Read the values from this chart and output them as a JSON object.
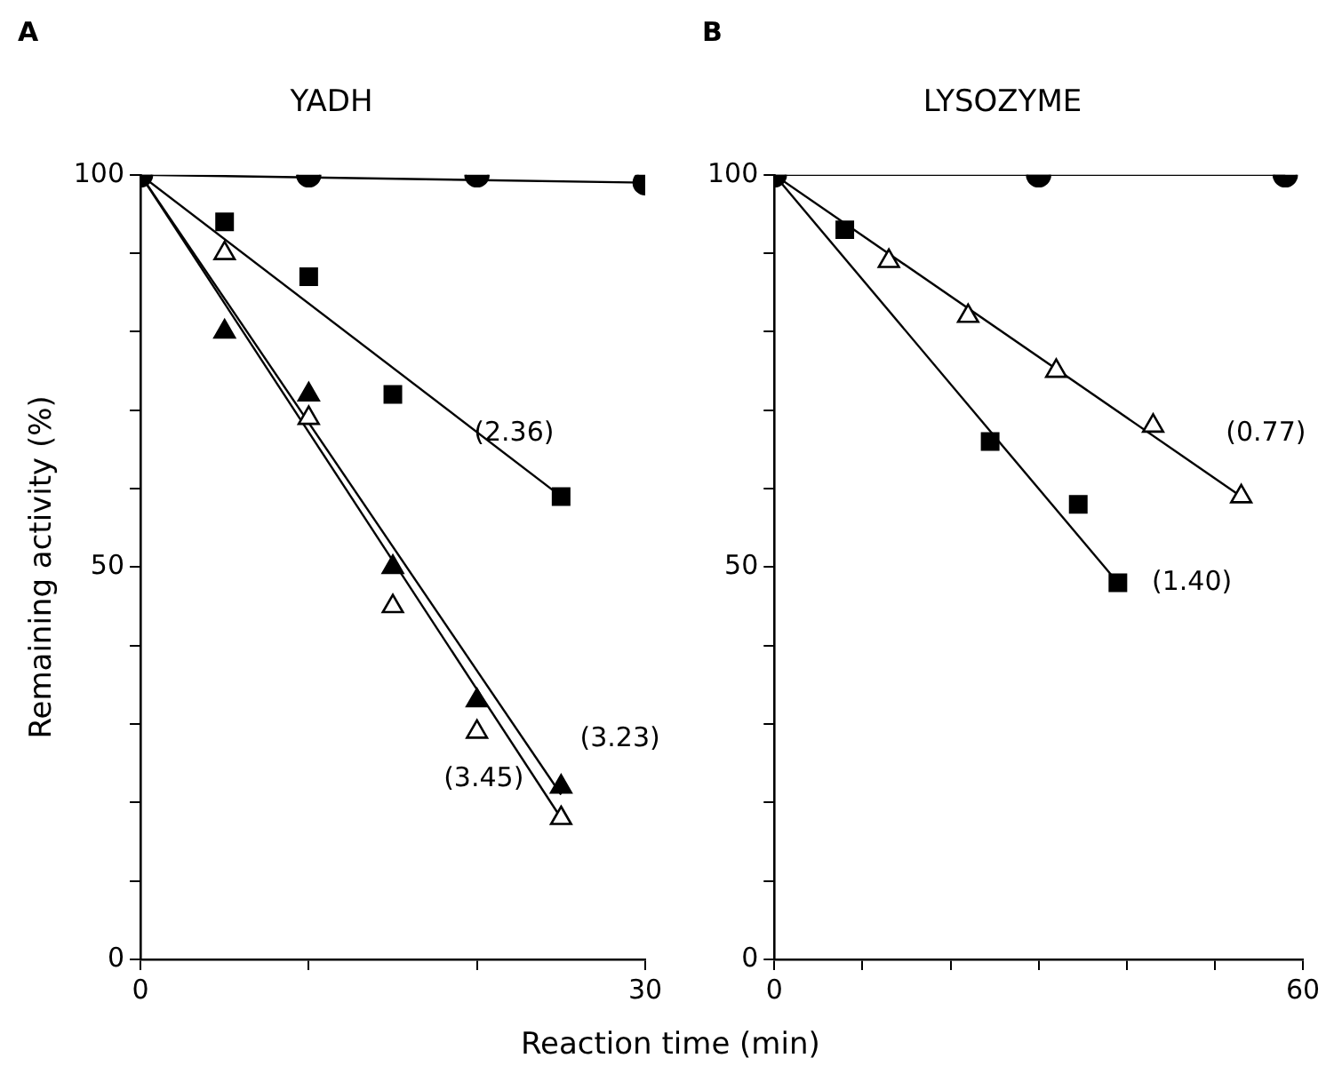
{
  "chart_data": [
    {
      "type": "scatter",
      "title": "A",
      "subtitle": "YADH",
      "ylabel": "Remaining activity (%)",
      "xlabel": "Reaction time (min)",
      "grid": false,
      "legend": false,
      "xlim": [
        0,
        30
      ],
      "xticks": [
        0,
        {
          "value": 10,
          "label": null
        },
        {
          "value": 20,
          "label": null
        },
        30
      ],
      "ylim": [
        0,
        100
      ],
      "yticks": [
        0,
        {
          "value": 10,
          "label": null
        },
        {
          "value": 20,
          "label": null
        },
        {
          "value": 30,
          "label": null
        },
        {
          "value": 40,
          "label": null
        },
        50,
        {
          "value": 60,
          "label": null
        },
        {
          "value": 70,
          "label": null
        },
        {
          "value": 80,
          "label": null
        },
        {
          "value": 90,
          "label": null
        },
        100
      ],
      "series": [
        {
          "color": "#000000",
          "marker": "circle",
          "x": [
            0,
            10,
            20,
            30
          ],
          "values": [
            100,
            100,
            100,
            99
          ]
        },
        {
          "color": "#000000",
          "marker": "square",
          "x": [
            5,
            10,
            15,
            25
          ],
          "values": [
            94,
            87,
            72,
            59
          ]
        },
        {
          "color": "#000000",
          "marker": "triangle",
          "x": [
            5,
            10,
            15,
            20,
            25
          ],
          "values": [
            80,
            72,
            50,
            33,
            22
          ]
        },
        {
          "color": "#ffffff",
          "marker": "triangle",
          "x": [
            5,
            10,
            15,
            20,
            25
          ],
          "values": [
            90,
            69,
            45,
            29,
            18
          ]
        },
        {
          "type": "line",
          "color": "#000000",
          "marker": "none",
          "x": [
            0,
            30
          ],
          "values": [
            100,
            99
          ]
        },
        {
          "type": "line",
          "color": "#000000",
          "marker": "none",
          "x": [
            0,
            25
          ],
          "values": [
            100,
            59
          ]
        },
        {
          "type": "line",
          "color": "#000000",
          "marker": "none",
          "x": [
            0,
            25
          ],
          "values": [
            100,
            21
          ]
        },
        {
          "type": "line",
          "color": "#000000",
          "marker": "none",
          "x": [
            0,
            25
          ],
          "values": [
            100,
            18
          ]
        }
      ],
      "annotations": [
        "(2.36)",
        "(3.23)",
        "(3.45)"
      ]
    },
    {
      "type": "scatter",
      "title": "B",
      "subtitle": "LYSOZYME",
      "grid": false,
      "legend": false,
      "xlim": [
        0,
        60
      ],
      "xticks": [
        0,
        {
          "value": 10,
          "label": null
        },
        {
          "value": 20,
          "label": null
        },
        {
          "value": 30,
          "label": null
        },
        {
          "value": 40,
          "label": null
        },
        {
          "value": 50,
          "label": null
        },
        60
      ],
      "ylim": [
        0,
        100
      ],
      "yticks": [
        0,
        {
          "value": 10,
          "label": null
        },
        {
          "value": 20,
          "label": null
        },
        {
          "value": 30,
          "label": null
        },
        {
          "value": 40,
          "label": null
        },
        50,
        {
          "value": 60,
          "label": null
        },
        {
          "value": 70,
          "label": null
        },
        {
          "value": 80,
          "label": null
        },
        {
          "value": 90,
          "label": null
        },
        100
      ],
      "series": [
        {
          "color": "#000000",
          "marker": "circle",
          "x": [
            0,
            30,
            58
          ],
          "values": [
            100,
            100,
            100
          ]
        },
        {
          "color": "#000000",
          "marker": "square",
          "x": [
            8,
            24.5,
            34.5,
            39
          ],
          "values": [
            93,
            66,
            58,
            48
          ]
        },
        {
          "color": "#ffffff",
          "marker": "triangle",
          "x": [
            13,
            22,
            32,
            43,
            53
          ],
          "values": [
            89,
            82,
            75,
            68,
            59
          ]
        },
        {
          "type": "line",
          "color": "#000000",
          "marker": "none",
          "x": [
            0,
            58
          ],
          "values": [
            100,
            100
          ]
        },
        {
          "type": "line",
          "color": "#000000",
          "marker": "none",
          "x": [
            0,
            39
          ],
          "values": [
            100,
            48
          ]
        },
        {
          "type": "line",
          "color": "#000000",
          "marker": "none",
          "x": [
            0,
            53
          ],
          "values": [
            100,
            59
          ]
        }
      ],
      "annotations": [
        "(0.77)",
        "(1.40)"
      ]
    }
  ]
}
